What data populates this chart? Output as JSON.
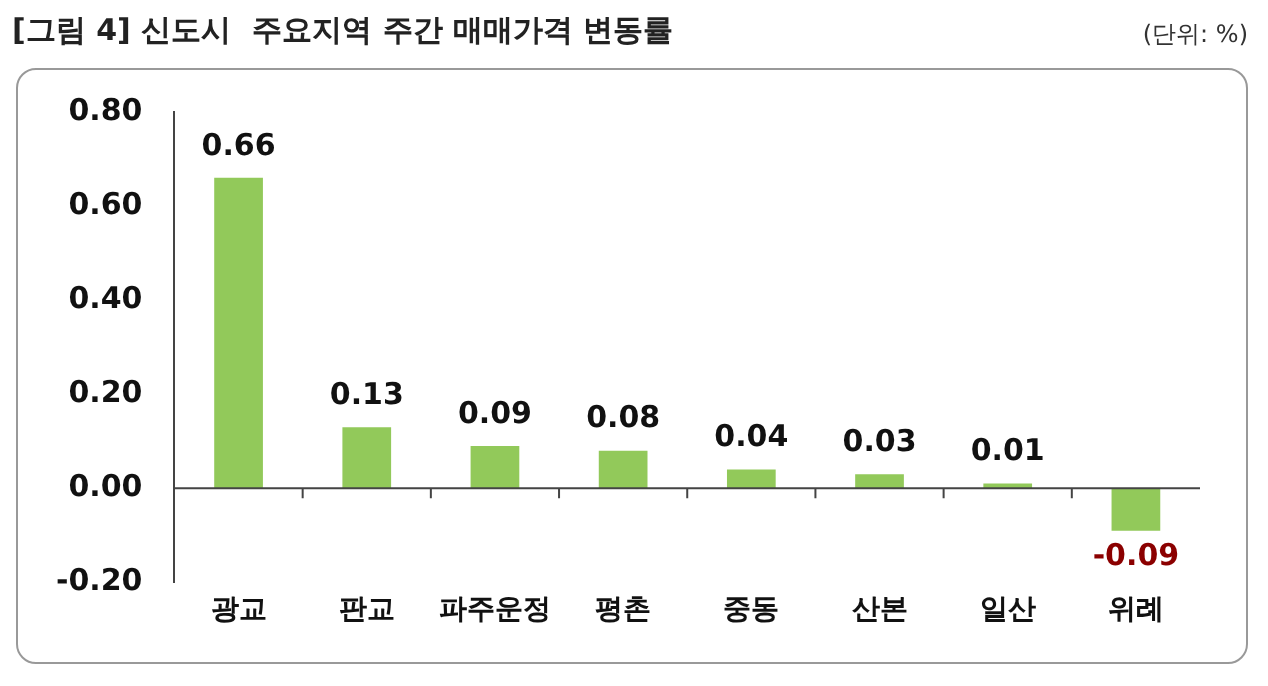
{
  "chart_data": {
    "type": "bar",
    "title": "[그림 4] 신도시  주요지역 주간 매매가격 변동률",
    "annotations": [
      "(단위: %)"
    ],
    "categories": [
      "광교",
      "판교",
      "파주운정",
      "평촌",
      "중동",
      "산본",
      "일산",
      "위례"
    ],
    "values": [
      0.66,
      0.13,
      0.09,
      0.08,
      0.04,
      0.03,
      0.01,
      -0.09
    ],
    "color": "#92c95a",
    "ylim": [
      -0.2,
      0.8
    ],
    "yticks": [
      {
        "value": -0.2,
        "label": "-0.20"
      },
      {
        "value": 0,
        "label": "0.00"
      },
      {
        "value": 0.2,
        "label": "0.20"
      },
      {
        "value": 0.4,
        "label": "0.40"
      },
      {
        "value": 0.6,
        "label": "0.60"
      },
      {
        "value": 0.8,
        "label": "0.80"
      }
    ],
    "data_labels": true,
    "legend": false
  }
}
